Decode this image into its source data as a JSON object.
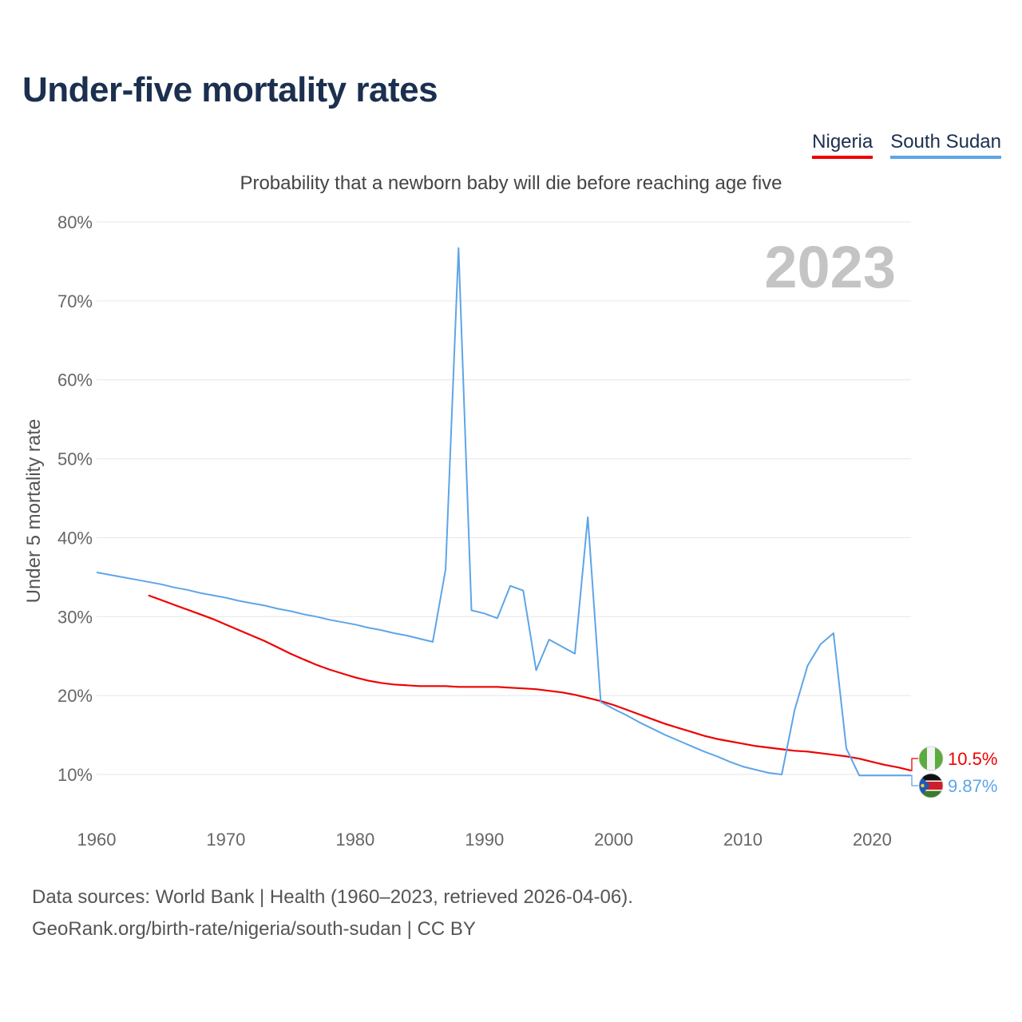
{
  "header": {
    "title": "Under-five mortality rates",
    "subtitle": "Probability that a newborn baby will die before reaching age five"
  },
  "legend": [
    {
      "label": "Nigeria",
      "color": "#ee0000"
    },
    {
      "label": "South Sudan",
      "color": "#5da5e8"
    }
  ],
  "footer": {
    "line1": "Data sources: World Bank | Health (1960–2023, retrieved 2026-04-06).",
    "line2": "GeoRank.org/birth-rate/nigeria/south-sudan | CC BY"
  },
  "chart_data": {
    "type": "line",
    "title": "Under-five mortality rates",
    "subtitle": "Probability that a newborn baby will die before reaching age five",
    "xlabel": "",
    "ylabel": "Under 5 mortality rate",
    "xlim": [
      1960,
      2023
    ],
    "ylim": [
      5,
      80
    ],
    "x_ticks": [
      1960,
      1970,
      1980,
      1990,
      2000,
      2010,
      2020
    ],
    "x_tick_labels": [
      "1960",
      "1970",
      "1980",
      "1990",
      "2000",
      "2010",
      "2020"
    ],
    "y_ticks": [
      10,
      20,
      30,
      40,
      50,
      60,
      70,
      80
    ],
    "y_tick_labels": [
      "10%",
      "20%",
      "30%",
      "40%",
      "50%",
      "60%",
      "70%",
      "80%"
    ],
    "grid": true,
    "year_watermark": "2023",
    "series": [
      {
        "name": "Nigeria",
        "color": "#ee0000",
        "end_label": "10.5%",
        "flag": "nigeria-flag",
        "x": [
          1964,
          1965,
          1966,
          1967,
          1968,
          1969,
          1970,
          1971,
          1972,
          1973,
          1974,
          1975,
          1976,
          1977,
          1978,
          1979,
          1980,
          1981,
          1982,
          1983,
          1984,
          1985,
          1986,
          1987,
          1988,
          1989,
          1990,
          1991,
          1992,
          1993,
          1994,
          1995,
          1996,
          1997,
          1998,
          1999,
          2000,
          2001,
          2002,
          2003,
          2004,
          2005,
          2006,
          2007,
          2008,
          2009,
          2010,
          2011,
          2012,
          2013,
          2014,
          2015,
          2016,
          2017,
          2018,
          2019,
          2020,
          2021,
          2022,
          2023
        ],
        "values": [
          32.7,
          32.1,
          31.5,
          30.9,
          30.3,
          29.7,
          29.0,
          28.3,
          27.6,
          26.9,
          26.1,
          25.3,
          24.6,
          23.9,
          23.3,
          22.8,
          22.3,
          21.9,
          21.6,
          21.4,
          21.3,
          21.2,
          21.2,
          21.2,
          21.1,
          21.1,
          21.1,
          21.1,
          21.0,
          20.9,
          20.8,
          20.6,
          20.4,
          20.1,
          19.7,
          19.3,
          18.8,
          18.2,
          17.6,
          17.0,
          16.4,
          15.9,
          15.4,
          14.9,
          14.5,
          14.2,
          13.9,
          13.6,
          13.4,
          13.2,
          13.0,
          12.9,
          12.7,
          12.5,
          12.3,
          12.0,
          11.6,
          11.2,
          10.9,
          10.5
        ]
      },
      {
        "name": "South Sudan",
        "color": "#5da5e8",
        "end_label": "9.87%",
        "flag": "south-sudan-flag",
        "x": [
          1960,
          1961,
          1962,
          1963,
          1964,
          1965,
          1966,
          1967,
          1968,
          1969,
          1970,
          1971,
          1972,
          1973,
          1974,
          1975,
          1976,
          1977,
          1978,
          1979,
          1980,
          1981,
          1982,
          1983,
          1984,
          1985,
          1986,
          1987,
          1988,
          1989,
          1990,
          1991,
          1992,
          1993,
          1994,
          1995,
          1996,
          1997,
          1998,
          1999,
          2000,
          2001,
          2002,
          2003,
          2004,
          2005,
          2006,
          2007,
          2008,
          2009,
          2010,
          2011,
          2012,
          2013,
          2014,
          2015,
          2016,
          2017,
          2018,
          2019,
          2020,
          2021,
          2022,
          2023
        ],
        "values": [
          35.6,
          35.3,
          35.0,
          34.7,
          34.4,
          34.1,
          33.7,
          33.4,
          33.0,
          32.7,
          32.4,
          32.0,
          31.7,
          31.4,
          31.0,
          30.7,
          30.3,
          30.0,
          29.6,
          29.3,
          29.0,
          28.6,
          28.3,
          27.9,
          27.6,
          27.2,
          26.8,
          36.0,
          76.7,
          30.8,
          30.4,
          29.8,
          33.9,
          33.3,
          23.2,
          27.1,
          26.2,
          25.3,
          42.6,
          19.2,
          18.3,
          17.5,
          16.6,
          15.8,
          15.0,
          14.3,
          13.6,
          12.9,
          12.3,
          11.6,
          11.0,
          10.6,
          10.2,
          10.0,
          18.2,
          23.8,
          26.5,
          27.9,
          13.3,
          9.87,
          9.87,
          9.87,
          9.87,
          9.87
        ]
      }
    ]
  }
}
